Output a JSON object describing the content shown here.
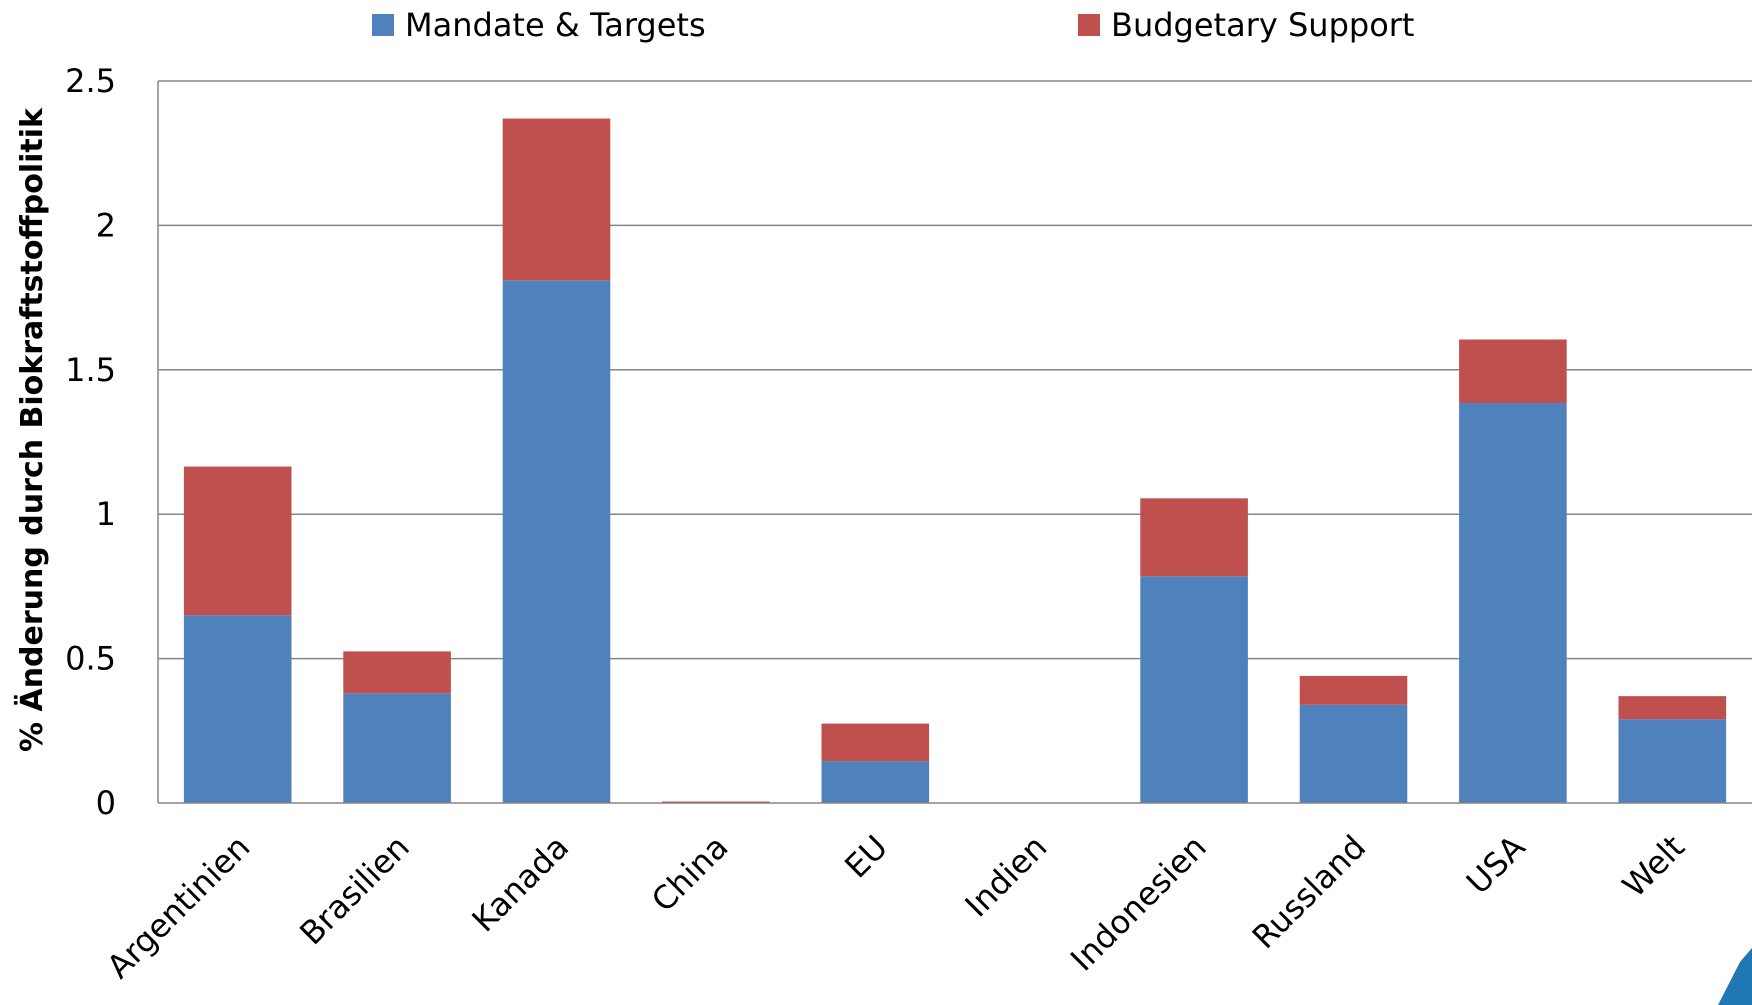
{
  "chart_data": {
    "type": "bar",
    "stacked": true,
    "title": "",
    "xlabel": "",
    "ylabel": "% Änderung durch Biokraftstoffpolitik",
    "ylim": [
      0,
      2.5
    ],
    "yticks": [
      "0",
      "0.5",
      "1",
      "1.5",
      "2",
      "2.5"
    ],
    "ytick_values": [
      0,
      0.5,
      1,
      1.5,
      2,
      2.5
    ],
    "grid": true,
    "legend_position": "top",
    "categories": [
      "Argentinien",
      "Brasilien",
      "Kanada",
      "China",
      "EU",
      "Indien",
      "Indonesien",
      "Russland",
      "USA",
      "Welt"
    ],
    "series": [
      {
        "name": "Mandate & Targets",
        "color": "#4F81BD",
        "values": [
          0.65,
          0.38,
          1.81,
          0.0,
          0.145,
          0.0,
          0.785,
          0.34,
          1.385,
          0.29
        ]
      },
      {
        "name": "Budgetary Support",
        "color": "#C0504D",
        "values": [
          0.515,
          0.145,
          0.56,
          0.005,
          0.13,
          0.0,
          0.27,
          0.1,
          0.22,
          0.08
        ]
      }
    ]
  },
  "colors": {
    "corner_accent": "#1F77B4"
  }
}
